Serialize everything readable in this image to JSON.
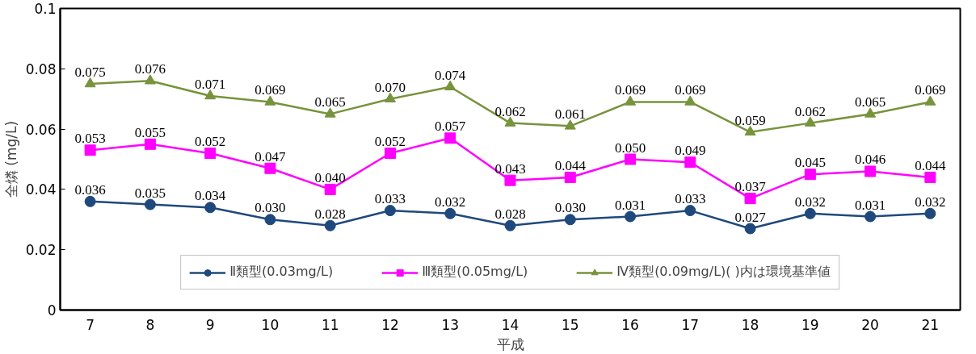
{
  "chart_data": {
    "type": "line",
    "xlabel": "平成",
    "ylabel": "全燐 (mg/L)",
    "categories": [
      "7",
      "8",
      "9",
      "10",
      "11",
      "12",
      "13",
      "14",
      "15",
      "16",
      "17",
      "18",
      "19",
      "20",
      "21"
    ],
    "ylim": [
      0,
      0.1
    ],
    "yticks": [
      0,
      0.02,
      0.04,
      0.06,
      0.08,
      0.1
    ],
    "grid": false,
    "legend": "bottom",
    "series": [
      {
        "name": "Ⅱ類型(0.03mg/L)",
        "color": "#1f497d",
        "marker": "circle",
        "values": [
          0.036,
          0.035,
          0.034,
          0.03,
          0.028,
          0.033,
          0.032,
          0.028,
          0.03,
          0.031,
          0.033,
          0.027,
          0.032,
          0.031,
          0.032
        ],
        "value_labels": [
          "0.036",
          "0.035",
          "0.034",
          "0.030",
          "0.028",
          "0.033",
          "0.032",
          "0.028",
          "0.030",
          "0.031",
          "0.033",
          "0.027",
          "0.032",
          "0.031",
          "0.032"
        ]
      },
      {
        "name": "Ⅲ類型(0.05mg/L)",
        "color": "#ff00ff",
        "marker": "square",
        "values": [
          0.053,
          0.055,
          0.052,
          0.047,
          0.04,
          0.052,
          0.057,
          0.043,
          0.044,
          0.05,
          0.049,
          0.037,
          0.045,
          0.046,
          0.044
        ],
        "value_labels": [
          "0.053",
          "0.055",
          "0.052",
          "0.047",
          "0.040",
          "0.052",
          "0.057",
          "0.043",
          "0.044",
          "0.050",
          "0.049",
          "0.037",
          "0.045",
          "0.046",
          "0.044"
        ]
      },
      {
        "name": "Ⅳ類型(0.09mg/L)( )内は環境基準値",
        "color": "#77933c",
        "marker": "triangle",
        "values": [
          0.075,
          0.076,
          0.071,
          0.069,
          0.065,
          0.07,
          0.074,
          0.062,
          0.061,
          0.069,
          0.069,
          0.059,
          0.062,
          0.065,
          0.069
        ],
        "value_labels": [
          "0.075",
          "0.076",
          "0.071",
          "0.069",
          "0.065",
          "0.070",
          "0.074",
          "0.062",
          "0.061",
          "0.069",
          "0.069",
          "0.059",
          "0.062",
          "0.065",
          "0.069"
        ]
      }
    ]
  }
}
